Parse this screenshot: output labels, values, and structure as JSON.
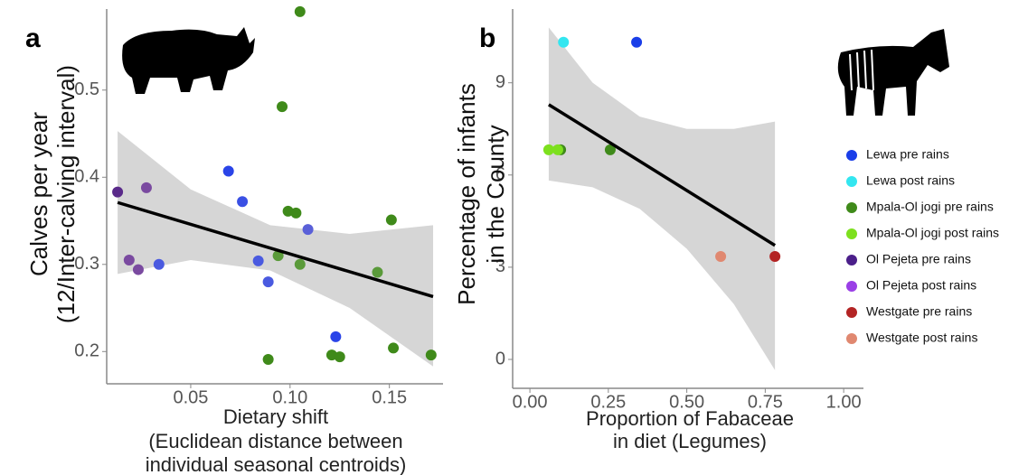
{
  "chart_data": [
    {
      "type": "scatter",
      "panel": "a",
      "ylabel": [
        "Calves per year",
        "(12/Inter-calving interval)"
      ],
      "xlabel": [
        "Dietary shift",
        "(Euclidean distance between",
        "individual seasonal centroids)"
      ],
      "xlim": [
        0.0077,
        0.177
      ],
      "ylim": [
        0.163,
        0.593
      ],
      "xticks": [
        0.05,
        {
          "value": 0.1,
          "label": "0.10"
        },
        0.15
      ],
      "yticks": [
        0.2,
        0.3,
        0.4,
        0.5
      ],
      "points": {
        "x": [
          0.0132,
          0.0277,
          0.019,
          0.0236,
          0.034,
          0.069,
          0.076,
          0.084,
          0.089,
          0.109,
          0.123,
          0.105,
          0.096,
          0.099,
          0.103,
          0.094,
          0.105,
          0.151,
          0.144,
          0.089,
          0.121,
          0.125,
          0.152,
          0.171
        ],
        "y": [
          0.383,
          0.388,
          0.305,
          0.294,
          0.3,
          0.407,
          0.372,
          0.304,
          0.28,
          0.34,
          0.217,
          0.59,
          0.481,
          0.361,
          0.359,
          0.31,
          0.3,
          0.351,
          0.291,
          0.191,
          0.196,
          0.194,
          0.204,
          0.196
        ],
        "colors": [
          "#5a2a8a",
          "#7a4aa0",
          "#7a4aa0",
          "#7a4aa0",
          "#4a5ae0",
          "#2a44e8",
          "#3a50e4",
          "#4a5ae0",
          "#4a5ae0",
          "#5a60d8",
          "#2a44e8",
          "#3f8a1a",
          "#3f8a1a",
          "#3f8a1a",
          "#3f8a1a",
          "#5a9a3a",
          "#5a9a3a",
          "#3f8a1a",
          "#5a9a3a",
          "#3f8a1a",
          "#3f8a1a",
          "#3f8a1a",
          "#3f8a1a",
          "#3f8a1a"
        ]
      },
      "fit": {
        "x": [
          0.0132,
          0.172
        ],
        "y": [
          0.371,
          0.263
        ]
      },
      "band": {
        "x": [
          0.0132,
          0.05,
          0.09,
          0.13,
          0.172
        ],
        "upper": [
          0.453,
          0.386,
          0.345,
          0.335,
          0.345
        ],
        "lower": [
          0.289,
          0.305,
          0.293,
          0.25,
          0.183
        ]
      }
    },
    {
      "type": "scatter",
      "panel": "b",
      "ylabel": [
        "Percentage of infants",
        "in the County"
      ],
      "xlabel": [
        "Proportion of Fabaceae",
        "in diet (Legumes)"
      ],
      "xlim": [
        -0.055,
        1.063
      ],
      "ylim": [
        -0.94,
        11.4
      ],
      "xticks": [
        {
          "value": 0,
          "label": "0.00"
        },
        0.25,
        {
          "value": 0.5,
          "label": "0.50"
        },
        0.75,
        {
          "value": 1,
          "label": "1.00"
        }
      ],
      "yticks": [
        0,
        3,
        6,
        9
      ],
      "series": [
        {
          "name": "Lewa pre rains",
          "color": "#1a3ee8",
          "x": [
            0.34
          ],
          "y": [
            10.32
          ]
        },
        {
          "name": "Lewa post rains",
          "color": "#33e6f0",
          "x": [
            0.107
          ],
          "y": [
            10.32
          ]
        },
        {
          "name": "Mpala-Ol jogi pre rains",
          "color": "#3f8a1a",
          "x": [
            0.098,
            0.256
          ],
          "y": [
            6.82,
            6.82
          ]
        },
        {
          "name": "Mpala-Ol jogi post rains",
          "color": "#7de01e",
          "x": [
            0.06,
            0.089
          ],
          "y": [
            6.82,
            6.82
          ]
        },
        {
          "name": "Ol Pejeta pre rains",
          "color": "#4b1f8a",
          "x": [],
          "y": []
        },
        {
          "name": "Ol Pejeta post rains",
          "color": "#9a3fe6",
          "x": [],
          "y": []
        },
        {
          "name": "Westgate pre rains",
          "color": "#b32424",
          "x": [
            0.781
          ],
          "y": [
            3.35
          ]
        },
        {
          "name": "Westgate post rains",
          "color": "#e08870",
          "x": [
            0.608
          ],
          "y": [
            3.35
          ]
        }
      ],
      "fit": {
        "x": [
          0.06,
          0.781
        ],
        "y": [
          8.29,
          3.71
        ]
      },
      "band": {
        "x": [
          0.06,
          0.2,
          0.35,
          0.5,
          0.65,
          0.781
        ],
        "upper": [
          10.8,
          9.0,
          7.9,
          7.5,
          7.5,
          7.74
        ],
        "lower": [
          5.82,
          5.6,
          4.9,
          3.6,
          1.8,
          -0.35
        ]
      }
    }
  ]
}
